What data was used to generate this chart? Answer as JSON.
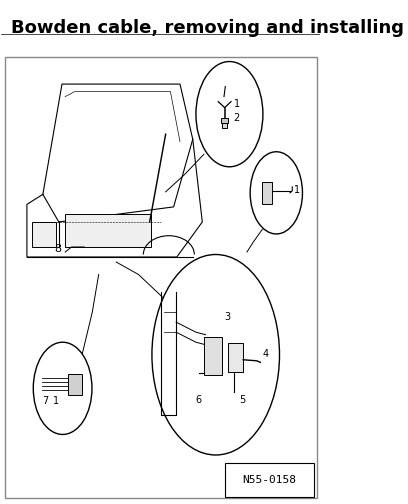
{
  "title": "Bowden cable, removing and installing",
  "title_fontsize": 13,
  "title_fontweight": "bold",
  "bg_color": "#ffffff",
  "border_color": "#888888",
  "figure_width": 4.08,
  "figure_height": 5.04,
  "dpi": 100,
  "ref_code": "N55-0158",
  "ref_fontsize": 8
}
